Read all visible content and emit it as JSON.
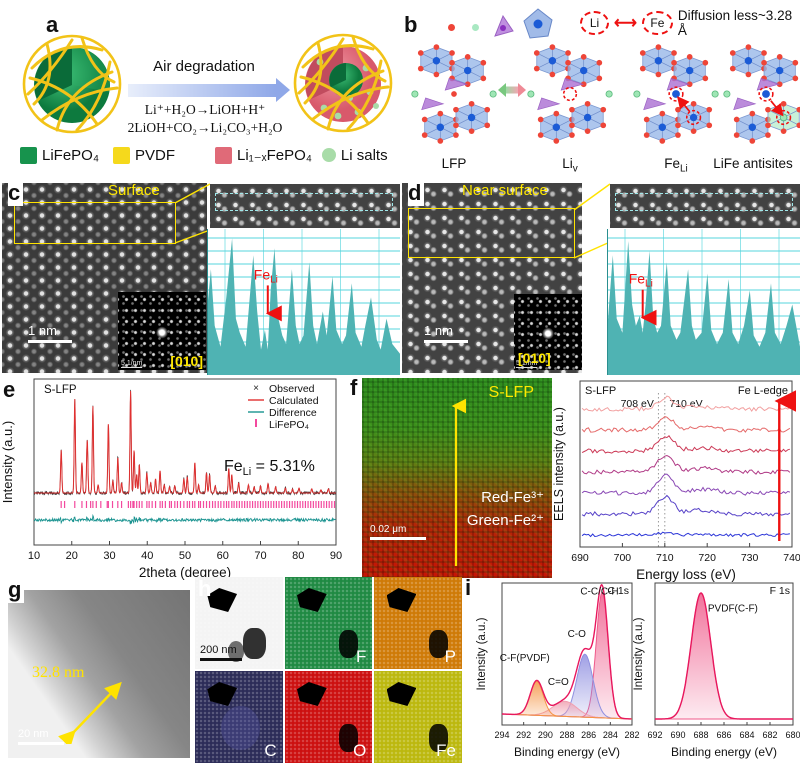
{
  "colors": {
    "accent_teal": "#4fb3b3",
    "accent_red": "#e03030",
    "yellow_annot": "#ffe800",
    "arrow_blue": "#8fa8e8"
  },
  "panels": {
    "a": {
      "label": "a",
      "arrow_title": "Air degradation",
      "reaction1": "Li⁺+H₂O→LiOH+H⁺",
      "reaction2": "2LiOH+CO₂→Li₂CO₃+H₂O",
      "legend": [
        {
          "label": "LiFePO₄",
          "color": "#17934d",
          "shape": "square"
        },
        {
          "label": "PVDF",
          "color": "#f5d91c",
          "shape": "square"
        },
        {
          "label": "Li₁₋ₓFePO₄",
          "color": "#e06a78",
          "shape": "square"
        },
        {
          "label": "Li salts",
          "color": "#a8dca8",
          "shape": "circle"
        }
      ]
    },
    "b": {
      "label": "b",
      "li": "Li",
      "fe": "Fe",
      "diffusion_text": "Diffusion less~3.28 Å",
      "structures": [
        {
          "label": "LFP"
        },
        {
          "base": "Li",
          "sub": "v"
        },
        {
          "base": "Fe",
          "sub": "Li"
        },
        {
          "label": "LiFe antisites"
        }
      ]
    },
    "c": {
      "label": "c",
      "region_label": "Surface",
      "scalebar": "1 nm",
      "fft_scale": "5 1/nm",
      "zone_axis": "[010]"
    },
    "d": {
      "label": "d",
      "region_label": "Near surface",
      "scalebar": "1 nm",
      "fft_scale": "5 1/nm",
      "zone_axis": "[010]"
    },
    "f": {
      "label": "f",
      "sample_label": "S-LFP",
      "red_label": "Red-Fe³⁺",
      "green_label": "Green-Fe²⁺",
      "scalebar": "0.02 μm"
    },
    "g": {
      "label": "g",
      "thickness": "32.8 nm",
      "scalebar": "20 nm"
    },
    "h": {
      "label": "h",
      "scalebar": "200 nm",
      "maps": [
        "F",
        "P",
        "C",
        "O",
        "Fe"
      ]
    },
    "i": {
      "label": "i"
    },
    "e": {
      "label": "e"
    }
  },
  "chart_data": [
    {
      "id": "xrd",
      "type": "line",
      "panel": "e",
      "sample_label": "S-LFP",
      "xlabel": "2theta (degree)",
      "ylabel": "Intensity (a.u.)",
      "xlim": [
        10,
        90
      ],
      "xticks": [
        10,
        20,
        30,
        40,
        50,
        60,
        70,
        80,
        90
      ],
      "legend": [
        {
          "label": "Observed",
          "color": "#222222",
          "marker": "x"
        },
        {
          "label": "Calculated",
          "color": "#e03030",
          "marker": "line"
        },
        {
          "label": "Difference",
          "color": "#1a9390",
          "marker": "line"
        },
        {
          "label": "LiFePO₄",
          "color": "#f3499e",
          "marker": "tick"
        }
      ],
      "annotation": {
        "base": "Fe",
        "sub": "Li",
        "rest": " = 5.31%"
      },
      "peaks": [
        [
          17.2,
          0.42
        ],
        [
          20.8,
          0.92
        ],
        [
          22.7,
          0.3
        ],
        [
          24.1,
          0.52
        ],
        [
          25.6,
          0.85
        ],
        [
          27.0,
          0.08
        ],
        [
          29.7,
          0.68
        ],
        [
          30.9,
          0.12
        ],
        [
          32.2,
          0.35
        ],
        [
          33.2,
          0.1
        ],
        [
          35.6,
          1.0
        ],
        [
          36.5,
          0.42
        ],
        [
          37.2,
          0.18
        ],
        [
          37.9,
          0.28
        ],
        [
          39.9,
          0.2
        ],
        [
          40.9,
          0.1
        ],
        [
          42.2,
          0.14
        ],
        [
          43.4,
          0.22
        ],
        [
          44.5,
          0.08
        ],
        [
          45.9,
          0.06
        ],
        [
          47.3,
          0.07
        ],
        [
          49.7,
          0.14
        ],
        [
          50.6,
          0.16
        ],
        [
          52.6,
          0.3
        ],
        [
          53.6,
          0.08
        ],
        [
          55.7,
          0.2
        ],
        [
          56.5,
          0.18
        ],
        [
          58.0,
          0.07
        ],
        [
          61.6,
          0.24
        ],
        [
          62.4,
          0.18
        ],
        [
          64.2,
          0.1
        ],
        [
          66.8,
          0.08
        ],
        [
          68.3,
          0.06
        ],
        [
          70.0,
          0.07
        ],
        [
          72.0,
          0.09
        ],
        [
          74.0,
          0.06
        ],
        [
          76.6,
          0.05
        ],
        [
          78.5,
          0.04
        ],
        [
          80.2,
          0.05
        ],
        [
          83.6,
          0.04
        ],
        [
          86.0,
          0.03
        ],
        [
          88.0,
          0.04
        ]
      ],
      "bragg_ticks": [
        17.2,
        18.1,
        20.8,
        22.7,
        23.9,
        25.0,
        25.6,
        26.5,
        27.7,
        29.4,
        29.7,
        30.8,
        32.2,
        33.2,
        35.0,
        35.6,
        36.2,
        36.5,
        37.2,
        37.9,
        38.6,
        39.9,
        40.5,
        41.3,
        42.2,
        43.4,
        44.0,
        44.8,
        45.9,
        46.4,
        47.3,
        48.0,
        48.8,
        49.7,
        50.6,
        51.2,
        52.0,
        52.6,
        53.6,
        54.1,
        54.9,
        55.7,
        56.5,
        57.3,
        58.0,
        58.8,
        59.5,
        60.3,
        61.0,
        61.6,
        62.4,
        63.0,
        63.7,
        64.4,
        65.1,
        65.8,
        66.5,
        67.2,
        67.9,
        68.6,
        69.3,
        70.0,
        70.7,
        71.4,
        72.1,
        72.8,
        73.5,
        74.2,
        74.9,
        75.6,
        76.3,
        77.0,
        77.7,
        78.4,
        79.1,
        79.8,
        80.5,
        81.2,
        81.9,
        82.6,
        83.3,
        84.0,
        84.7,
        85.4,
        86.1,
        86.8,
        87.5,
        88.2,
        88.9,
        89.6
      ]
    },
    {
      "id": "eels",
      "type": "line",
      "panel": "f",
      "sample_label": "S-LFP",
      "edge_label": "Fe L-edge",
      "xlabel": "Energy loss (eV)",
      "ylabel": "EELS intensity (a.u.)",
      "xlim": [
        690,
        740
      ],
      "xticks": [
        690,
        700,
        710,
        720,
        730,
        740
      ],
      "peak_center": 710.2,
      "ref_lines": [
        708.5,
        710
      ],
      "ref_labels": [
        "708 eV",
        "710 eV"
      ],
      "n_spectra": 7,
      "amplitudes": [
        2,
        17,
        18,
        17,
        15,
        13,
        11
      ],
      "colors": [
        "#2b35d8",
        "#5742c8",
        "#8a49b5",
        "#b03a86",
        "#cc3a57",
        "#e56a6a",
        "#f2a0a0"
      ],
      "arrow_color": "#ee1111"
    },
    {
      "id": "profile_c",
      "type": "area",
      "panel": "c",
      "color": "#4fb3b3",
      "grid_color": "#55d6de",
      "annotation": {
        "base": "Fe",
        "sub": "Li"
      },
      "arrow_x": 0.315,
      "arrow_top": 0.38,
      "points": [
        [
          0,
          0.45
        ],
        [
          0.02,
          0.75
        ],
        [
          0.04,
          0.35
        ],
        [
          0.07,
          0.2
        ],
        [
          0.1,
          0.55
        ],
        [
          0.13,
          0.97
        ],
        [
          0.15,
          0.4
        ],
        [
          0.17,
          0.3
        ],
        [
          0.2,
          0.2
        ],
        [
          0.24,
          0.85
        ],
        [
          0.26,
          0.45
        ],
        [
          0.28,
          0.18
        ],
        [
          0.3,
          0.32
        ],
        [
          0.315,
          0.18
        ],
        [
          0.33,
          0.6
        ],
        [
          0.35,
          0.9
        ],
        [
          0.37,
          0.4
        ],
        [
          0.39,
          0.28
        ],
        [
          0.41,
          0.22
        ],
        [
          0.44,
          0.75
        ],
        [
          0.46,
          0.35
        ],
        [
          0.48,
          0.22
        ],
        [
          0.5,
          0.28
        ],
        [
          0.53,
          0.8
        ],
        [
          0.55,
          0.35
        ],
        [
          0.57,
          0.22
        ],
        [
          0.6,
          0.45
        ],
        [
          0.62,
          0.28
        ],
        [
          0.65,
          0.7
        ],
        [
          0.67,
          0.32
        ],
        [
          0.7,
          0.22
        ],
        [
          0.72,
          0.28
        ],
        [
          0.75,
          0.65
        ],
        [
          0.77,
          0.3
        ],
        [
          0.8,
          0.2
        ],
        [
          0.82,
          0.35
        ],
        [
          0.85,
          0.55
        ],
        [
          0.88,
          0.25
        ],
        [
          0.9,
          0.18
        ],
        [
          0.93,
          0.4
        ],
        [
          0.96,
          0.22
        ],
        [
          1,
          0.15
        ]
      ]
    },
    {
      "id": "profile_d",
      "type": "area",
      "panel": "d",
      "color": "#4fb3b3",
      "grid_color": "#55d6de",
      "annotation": {
        "base": "Fe",
        "sub": "Li"
      },
      "arrow_x": 0.185,
      "arrow_top": 0.35,
      "points": [
        [
          0,
          0.3
        ],
        [
          0.03,
          0.85
        ],
        [
          0.05,
          0.4
        ],
        [
          0.08,
          0.3
        ],
        [
          0.11,
          0.95
        ],
        [
          0.13,
          0.5
        ],
        [
          0.15,
          0.35
        ],
        [
          0.17,
          0.42
        ],
        [
          0.185,
          0.3
        ],
        [
          0.2,
          0.5
        ],
        [
          0.22,
          0.88
        ],
        [
          0.24,
          0.4
        ],
        [
          0.26,
          0.3
        ],
        [
          0.28,
          0.35
        ],
        [
          0.31,
          0.8
        ],
        [
          0.33,
          0.35
        ],
        [
          0.36,
          0.25
        ],
        [
          0.38,
          0.3
        ],
        [
          0.42,
          0.75
        ],
        [
          0.44,
          0.35
        ],
        [
          0.46,
          0.25
        ],
        [
          0.49,
          0.3
        ],
        [
          0.52,
          0.72
        ],
        [
          0.54,
          0.32
        ],
        [
          0.57,
          0.22
        ],
        [
          0.6,
          0.3
        ],
        [
          0.63,
          0.68
        ],
        [
          0.65,
          0.3
        ],
        [
          0.68,
          0.22
        ],
        [
          0.71,
          0.35
        ],
        [
          0.74,
          0.6
        ],
        [
          0.76,
          0.28
        ],
        [
          0.79,
          0.2
        ],
        [
          0.82,
          0.3
        ],
        [
          0.85,
          0.65
        ],
        [
          0.87,
          0.3
        ],
        [
          0.9,
          0.22
        ],
        [
          0.93,
          0.35
        ],
        [
          0.96,
          0.5
        ],
        [
          1,
          0.2
        ]
      ]
    },
    {
      "id": "xps_c1s",
      "type": "area",
      "panel": "i",
      "region_label": "C 1s",
      "xlabel": "Binding energy (eV)",
      "ylabel": "Intensity (a.u.)",
      "xlim": [
        294,
        282
      ],
      "xticks": [
        294,
        292,
        290,
        288,
        286,
        284,
        282
      ],
      "envelope_color": "#e8175d",
      "baseline_slope": 5,
      "components": [
        {
          "name": "C-C/C-H",
          "center": 284.75,
          "amp": 1.0,
          "sigma": 0.55,
          "color": "#ef5a8a",
          "label_at": [
            285.0,
            0.08
          ],
          "anchor": "middle"
        },
        {
          "name": "C-O",
          "center": 286.35,
          "amp": 0.5,
          "sigma": 0.75,
          "color": "#8f8fe0",
          "label_at": [
            287.1,
            0.38
          ],
          "anchor": "middle"
        },
        {
          "name": "C=O",
          "center": 288.2,
          "amp": 0.12,
          "sigma": 1.1,
          "color": "#f0a0b0",
          "label_at": [
            288.8,
            0.72
          ],
          "anchor": "middle"
        },
        {
          "name": "C-F(PVDF)",
          "center": 290.8,
          "amp": 0.27,
          "sigma": 0.6,
          "color": "#f59342",
          "label_at": [
            291.9,
            0.55
          ],
          "anchor": "middle"
        }
      ]
    },
    {
      "id": "xps_f1s",
      "type": "area",
      "panel": "i",
      "region_label": "F 1s",
      "xlabel": "Binding energy (eV)",
      "ylabel": "Intensity (a.u.)",
      "xlim": [
        692,
        680
      ],
      "xticks": [
        692,
        690,
        688,
        686,
        684,
        682,
        680
      ],
      "envelope_color": "#e8175d",
      "baseline_slope": 0,
      "components": [
        {
          "name": "PVDF(C-F)",
          "center": 688.0,
          "amp": 1.0,
          "sigma": 0.85,
          "color": "#ef5a8a",
          "label_at": [
            687.4,
            0.2
          ],
          "anchor": "start"
        }
      ]
    }
  ]
}
